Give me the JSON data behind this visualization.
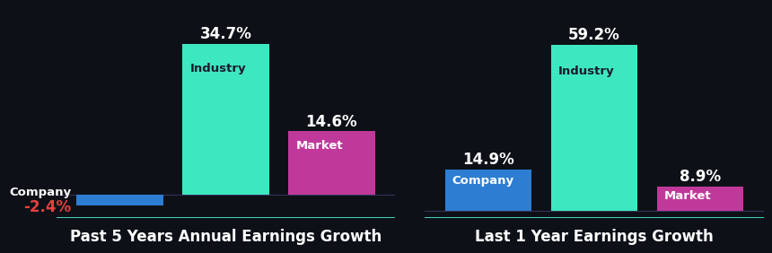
{
  "background_color": "#0d1117",
  "chart1": {
    "title": "Past 5 Years Annual Earnings Growth",
    "bars": [
      {
        "label": "Company",
        "value": -2.4,
        "color": "#2d7dd2",
        "label_color": "#ffffff",
        "value_color": "#e84040",
        "label_outside_left": true
      },
      {
        "label": "Industry",
        "value": 34.7,
        "color": "#3de8c0",
        "label_color": "#1a1a2e",
        "value_color": "#ffffff"
      },
      {
        "label": "Market",
        "value": 14.6,
        "color": "#c0399a",
        "label_color": "#ffffff",
        "value_color": "#ffffff"
      }
    ]
  },
  "chart2": {
    "title": "Last 1 Year Earnings Growth",
    "bars": [
      {
        "label": "Company",
        "value": 14.9,
        "color": "#2d7dd2",
        "label_color": "#ffffff",
        "value_color": "#ffffff"
      },
      {
        "label": "Industry",
        "value": 59.2,
        "color": "#3de8c0",
        "label_color": "#1a1a2e",
        "value_color": "#ffffff"
      },
      {
        "label": "Market",
        "value": 8.9,
        "color": "#c0399a",
        "label_color": "#ffffff",
        "value_color": "#ffffff"
      }
    ]
  },
  "title_color": "#ffffff",
  "title_fontsize": 12,
  "label_fontsize": 9.5,
  "value_fontsize": 12,
  "divider_color": "#4de8d0",
  "divider_linewidth": 2
}
